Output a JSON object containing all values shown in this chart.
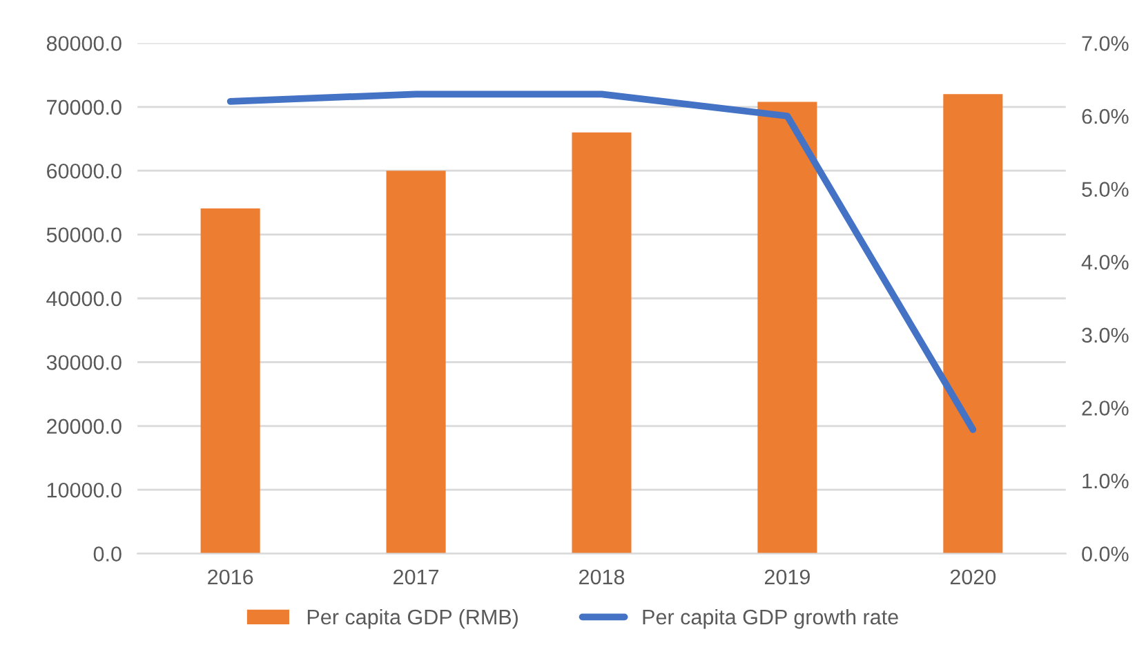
{
  "chart_data": {
    "type": "bar",
    "categories": [
      "2016",
      "2017",
      "2018",
      "2019",
      "2020"
    ],
    "series": [
      {
        "name": "Per capita GDP (RMB)",
        "color": "#ed7d31",
        "values": [
          54100,
          60000,
          66000,
          70800,
          72000
        ]
      },
      {
        "name": "Per capita GDP growth rate",
        "type": "line",
        "axis": "y2",
        "color": "#4472c4",
        "values": [
          6.2,
          6.3,
          6.3,
          6.0,
          1.7
        ]
      }
    ],
    "ylim": [
      0,
      80000
    ],
    "yticks": [
      {
        "value": 0,
        "label": "0.0"
      },
      {
        "value": 10000,
        "label": "10000.0"
      },
      {
        "value": 20000,
        "label": "20000.0"
      },
      {
        "value": 30000,
        "label": "30000.0"
      },
      {
        "value": 40000,
        "label": "40000.0"
      },
      {
        "value": 50000,
        "label": "50000.0"
      },
      {
        "value": 60000,
        "label": "60000.0"
      },
      {
        "value": 70000,
        "label": "70000.0"
      },
      {
        "value": 80000,
        "label": "80000.0"
      }
    ],
    "y2lim": [
      0,
      7
    ],
    "y2ticks": [
      {
        "value": 0,
        "label": "0.0%"
      },
      {
        "value": 1,
        "label": "1.0%"
      },
      {
        "value": 2,
        "label": "2.0%"
      },
      {
        "value": 3,
        "label": "3.0%"
      },
      {
        "value": 4,
        "label": "4.0%"
      },
      {
        "value": 5,
        "label": "5.0%"
      },
      {
        "value": 6,
        "label": "6.0%"
      },
      {
        "value": 7,
        "label": "7.0%"
      }
    ],
    "grid": "y",
    "legend": "bottom",
    "marker": "none"
  }
}
